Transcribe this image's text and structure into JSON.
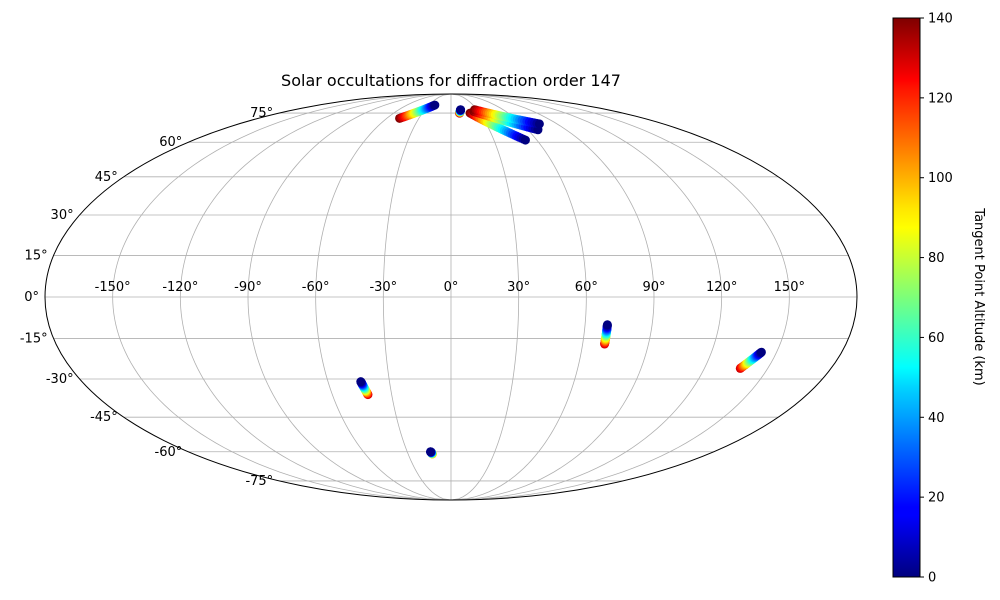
{
  "chart_data": {
    "type": "scatter",
    "projection": "mollweide",
    "title": "Solar occultations for diffraction order 147",
    "x_ticks": [
      "-150°",
      "-120°",
      "-90°",
      "-60°",
      "-30°",
      "0°",
      "30°",
      "60°",
      "90°",
      "120°",
      "150°"
    ],
    "y_ticks": [
      "-75°",
      "-60°",
      "-45°",
      "-30°",
      "-15°",
      "0°",
      "15°",
      "30°",
      "45°",
      "60°",
      "75°"
    ],
    "grid": true,
    "colorbar": {
      "label": "Tangent Point Altitude (km)",
      "colormap": "jet",
      "range": [
        0,
        140
      ],
      "ticks": [
        "0",
        "20",
        "40",
        "60",
        "80",
        "100",
        "120",
        "140"
      ]
    },
    "series": [
      {
        "lon_start": -48,
        "lat_start": 72,
        "lon_end": -22,
        "lat_end": 80,
        "alt_start": 140,
        "alt_end": 0
      },
      {
        "lon_start": 9,
        "lat_start": 75,
        "lon_end": 11,
        "lat_end": 77,
        "alt_start": 140,
        "alt_end": 0
      },
      {
        "lon_start": 20,
        "lat_start": 75,
        "lon_end": 52,
        "lat_end": 61,
        "alt_start": 140,
        "alt_end": 0
      },
      {
        "lon_start": 25,
        "lat_start": 76,
        "lon_end": 68,
        "lat_end": 66,
        "alt_start": 140,
        "alt_end": 0
      },
      {
        "lon_start": 27,
        "lat_start": 77,
        "lon_end": 75,
        "lat_end": 69,
        "alt_start": 140,
        "alt_end": 0
      },
      {
        "lon_start": 70,
        "lat_start": -17,
        "lon_end": 70,
        "lat_end": -10,
        "alt_start": 130,
        "alt_end": 0
      },
      {
        "lon_start": 137,
        "lat_start": -26,
        "lon_end": 143,
        "lat_end": -20,
        "alt_start": 130,
        "alt_end": 0
      },
      {
        "lon_start": -42,
        "lat_start": -36,
        "lon_end": -44,
        "lat_end": -31,
        "alt_start": 130,
        "alt_end": 0
      },
      {
        "lon_start": -13,
        "lat_start": -61,
        "lon_end": -14,
        "lat_end": -60,
        "alt_start": 100,
        "alt_end": 0
      }
    ]
  }
}
